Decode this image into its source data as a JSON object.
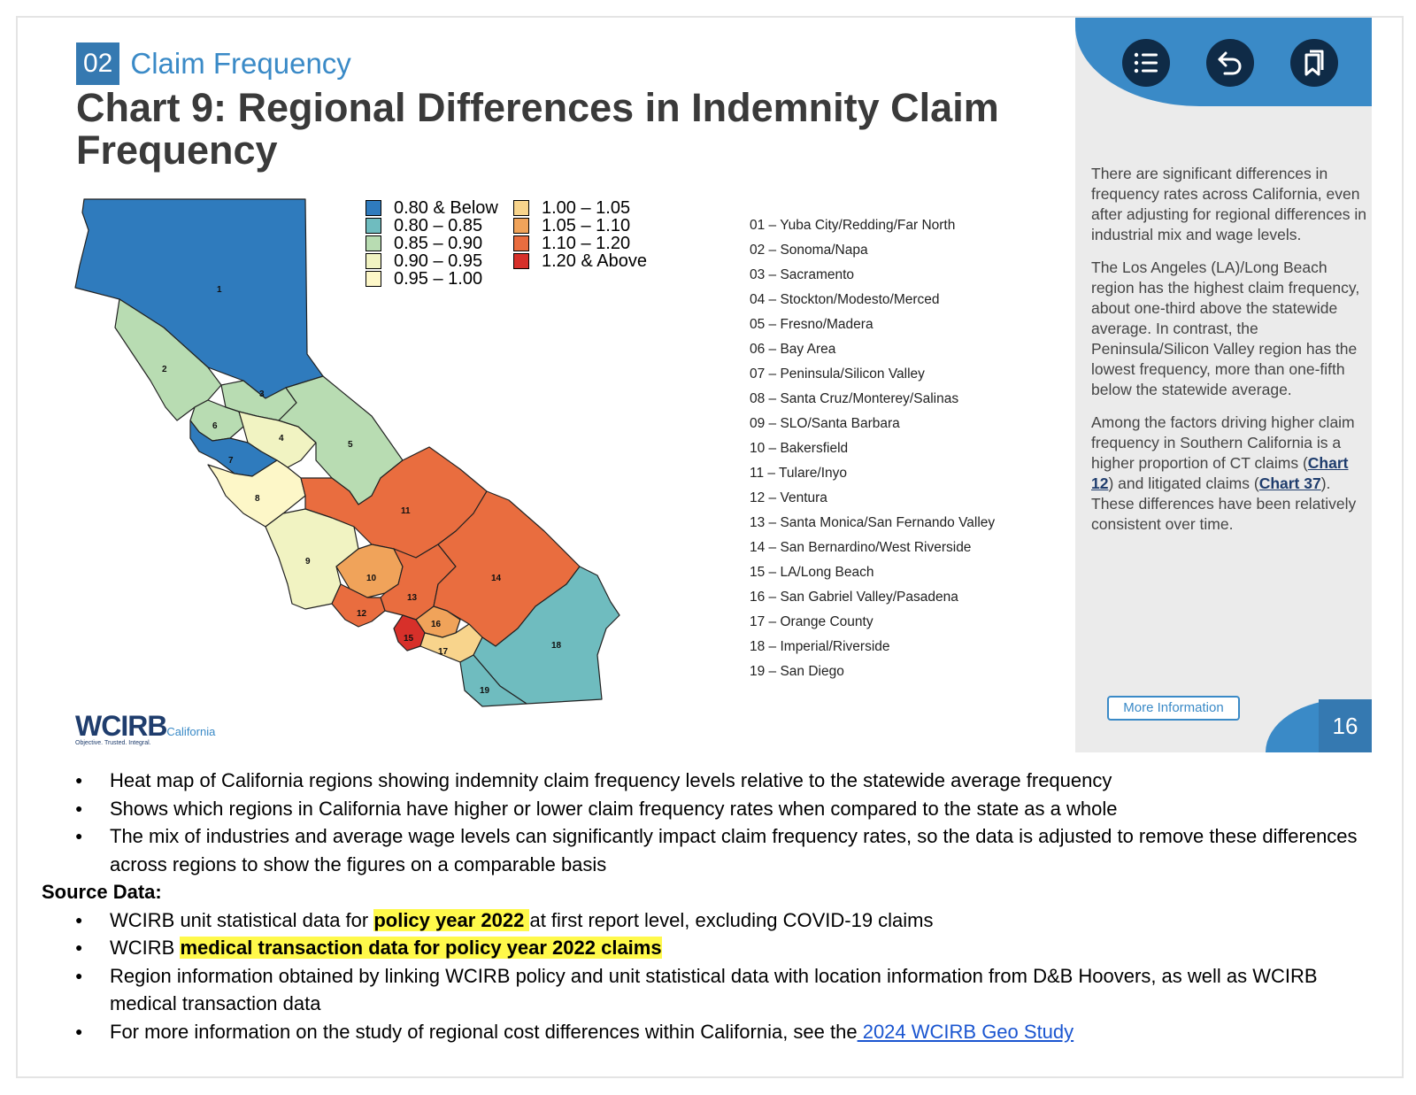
{
  "header": {
    "section_number": "02",
    "section_title": "Claim Frequency",
    "chart_title": "Chart 9: Regional Differences in Indemnity Claim Frequency"
  },
  "legend": [
    {
      "label": "0.80 & Below",
      "color": "#2f7bbd"
    },
    {
      "label": "0.80 – 0.85",
      "color": "#6fbcbf"
    },
    {
      "label": "0.85 – 0.90",
      "color": "#b8dcb2"
    },
    {
      "label": "0.90 – 0.95",
      "color": "#f1f3c2"
    },
    {
      "label": "0.95 – 1.00",
      "color": "#fdf7c8"
    },
    {
      "label": "1.00 – 1.05",
      "color": "#f8d48c"
    },
    {
      "label": "1.05 – 1.10",
      "color": "#f0a35a"
    },
    {
      "label": "1.10 – 1.20",
      "color": "#e96d3f"
    },
    {
      "label": "1.20 & Above",
      "color": "#d7302a"
    }
  ],
  "map": {
    "regions": [
      "1",
      "2",
      "3",
      "4",
      "5",
      "6",
      "7",
      "8",
      "9",
      "10",
      "11",
      "12",
      "13",
      "14",
      "15",
      "16",
      "17",
      "18",
      "19"
    ]
  },
  "region_list": [
    "01 – Yuba City/Redding/Far North",
    "02 – Sonoma/Napa",
    "03 – Sacramento",
    "04 – Stockton/Modesto/Merced",
    "05 – Fresno/Madera",
    "06 – Bay Area",
    "07 – Peninsula/Silicon Valley",
    "08 – Santa Cruz/Monterey/Salinas",
    "09 – SLO/Santa Barbara",
    "10 – Bakersfield",
    "11 – Tulare/Inyo",
    "12 – Ventura",
    "13 – Santa Monica/San Fernando Valley",
    "14 – San Bernardino/West Riverside",
    "15 – LA/Long Beach",
    "16 – San Gabriel Valley/Pasadena",
    "17 – Orange County",
    "18 – Imperial/Riverside",
    "19 – San Diego"
  ],
  "side": {
    "p1": "There are significant differences in frequency rates across California, even after adjusting for regional differences in industrial mix and wage levels.",
    "p2": "The Los Angeles (LA)/Long Beach region has the highest claim frequency, about one-third above the statewide average. In contrast, the Peninsula/Silicon Valley region has the lowest frequency, more than one-fifth below the statewide average.",
    "p3_a": "Among the factors driving higher claim frequency in Southern California is a higher proportion of CT claims (",
    "p3_link1": "Chart 12",
    "p3_b": ") and litigated claims (",
    "p3_link2": "Chart 37",
    "p3_c": "). These differences have been relatively consistent over time.",
    "more_info": "More Information",
    "page_number": "16"
  },
  "logo": {
    "main": "WCIRB",
    "sub": "California",
    "tagline": "Objective. Trusted. Integral."
  },
  "notes": {
    "bullets": [
      "Heat map of California regions showing indemnity claim frequency levels relative to the statewide average frequency",
      "Shows which regions in California have higher or lower claim frequency rates when compared to the state as a whole",
      "The mix of industries and average wage levels can significantly impact claim frequency rates, so the data is adjusted to remove these differences across regions to show the figures on a comparable basis"
    ],
    "source_heading": "Source Data:",
    "src1_a": "WCIRB unit statistical data for ",
    "src1_hl": "policy year 2022 ",
    "src1_b": "at first report level, excluding COVID-19 claims",
    "src2_a": "WCIRB ",
    "src2_hl": "medical transaction data for policy year 2022 claims",
    "src3": "Region information obtained by linking WCIRB policy and unit statistical data with location information from D&B Hoovers, as well as WCIRB medical transaction data",
    "src4_a": "For more information on the study of regional cost differences within California, see the",
    "src4_link": " 2024 WCIRB Geo Study"
  },
  "icons": [
    "list-icon",
    "back-icon",
    "bookmark-icon"
  ]
}
